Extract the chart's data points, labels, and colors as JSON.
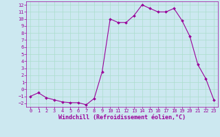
{
  "x": [
    0,
    1,
    2,
    3,
    4,
    5,
    6,
    7,
    8,
    9,
    10,
    11,
    12,
    13,
    14,
    15,
    16,
    17,
    18,
    19,
    20,
    21,
    22,
    23
  ],
  "y": [
    -1.0,
    -0.5,
    -1.2,
    -1.5,
    -1.8,
    -1.9,
    -1.9,
    -2.2,
    -1.3,
    2.5,
    10.0,
    9.5,
    9.5,
    10.5,
    12.0,
    11.5,
    11.0,
    11.0,
    11.5,
    9.8,
    7.5,
    3.5,
    1.5,
    -1.5
  ],
  "line_color": "#990099",
  "marker": "D",
  "marker_size": 2.0,
  "bg_color": "#cce8f0",
  "grid_color": "#aaddcc",
  "xlabel": "Windchill (Refroidissement éolien,°C)",
  "xlabel_color": "#990099",
  "tick_color": "#990099",
  "label_color": "#990099",
  "ylim": [
    -2.5,
    12.5
  ],
  "xlim": [
    -0.5,
    23.5
  ],
  "yticks": [
    -2,
    -1,
    0,
    1,
    2,
    3,
    4,
    5,
    6,
    7,
    8,
    9,
    10,
    11,
    12
  ],
  "xticks": [
    0,
    1,
    2,
    3,
    4,
    5,
    6,
    7,
    8,
    9,
    10,
    11,
    12,
    13,
    14,
    15,
    16,
    17,
    18,
    19,
    20,
    21,
    22,
    23
  ],
  "tick_fontsize": 5.0,
  "xlabel_fontsize": 6.0,
  "linewidth": 0.8
}
